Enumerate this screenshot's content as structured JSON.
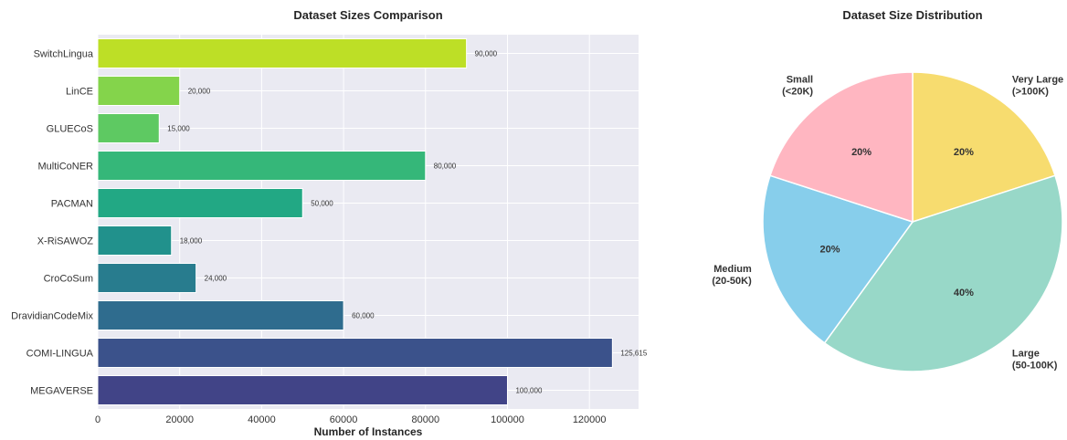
{
  "chart_data": [
    {
      "type": "bar",
      "orientation": "horizontal",
      "title": "Dataset Sizes Comparison",
      "xlabel": "Number of Instances",
      "ylabel": "",
      "xlim": [
        0,
        132000
      ],
      "xticks": [
        0,
        20000,
        40000,
        60000,
        80000,
        100000,
        120000
      ],
      "grid": true,
      "categories": [
        "SwitchLingua",
        "LinCE",
        "GLUECoS",
        "MultiCoNER",
        "PACMAN",
        "X-RiSAWOZ",
        "CroCoSum",
        "DravidianCodeMix",
        "COMI-LINGUA",
        "MEGAVERSE"
      ],
      "values": [
        90000,
        20000,
        15000,
        80000,
        50000,
        18000,
        24000,
        60000,
        125615,
        100000
      ],
      "data_labels": [
        "90,000",
        "20,000",
        "15,000",
        "80,000",
        "50,000",
        "18,000",
        "24,000",
        "60,000",
        "125,615",
        "100,000"
      ],
      "colors": [
        "#bddf26",
        "#84d44b",
        "#5ec962",
        "#35b779",
        "#22a884",
        "#21918c",
        "#287c8e",
        "#2f6c8e",
        "#3b528b",
        "#414487"
      ]
    },
    {
      "type": "pie",
      "title": "Dataset Size Distribution",
      "labels": [
        "Very Large\n(>100K)",
        "Large\n(50-100K)",
        "Medium\n(20-50K)",
        "Small\n(<20K)"
      ],
      "values": [
        20,
        40,
        20,
        20
      ],
      "percent_labels": [
        "20%",
        "40%",
        "20%",
        "20%"
      ],
      "colors": [
        "#f7dc6f",
        "#98d8c8",
        "#87ceeb",
        "#ffb6c1"
      ]
    }
  ]
}
